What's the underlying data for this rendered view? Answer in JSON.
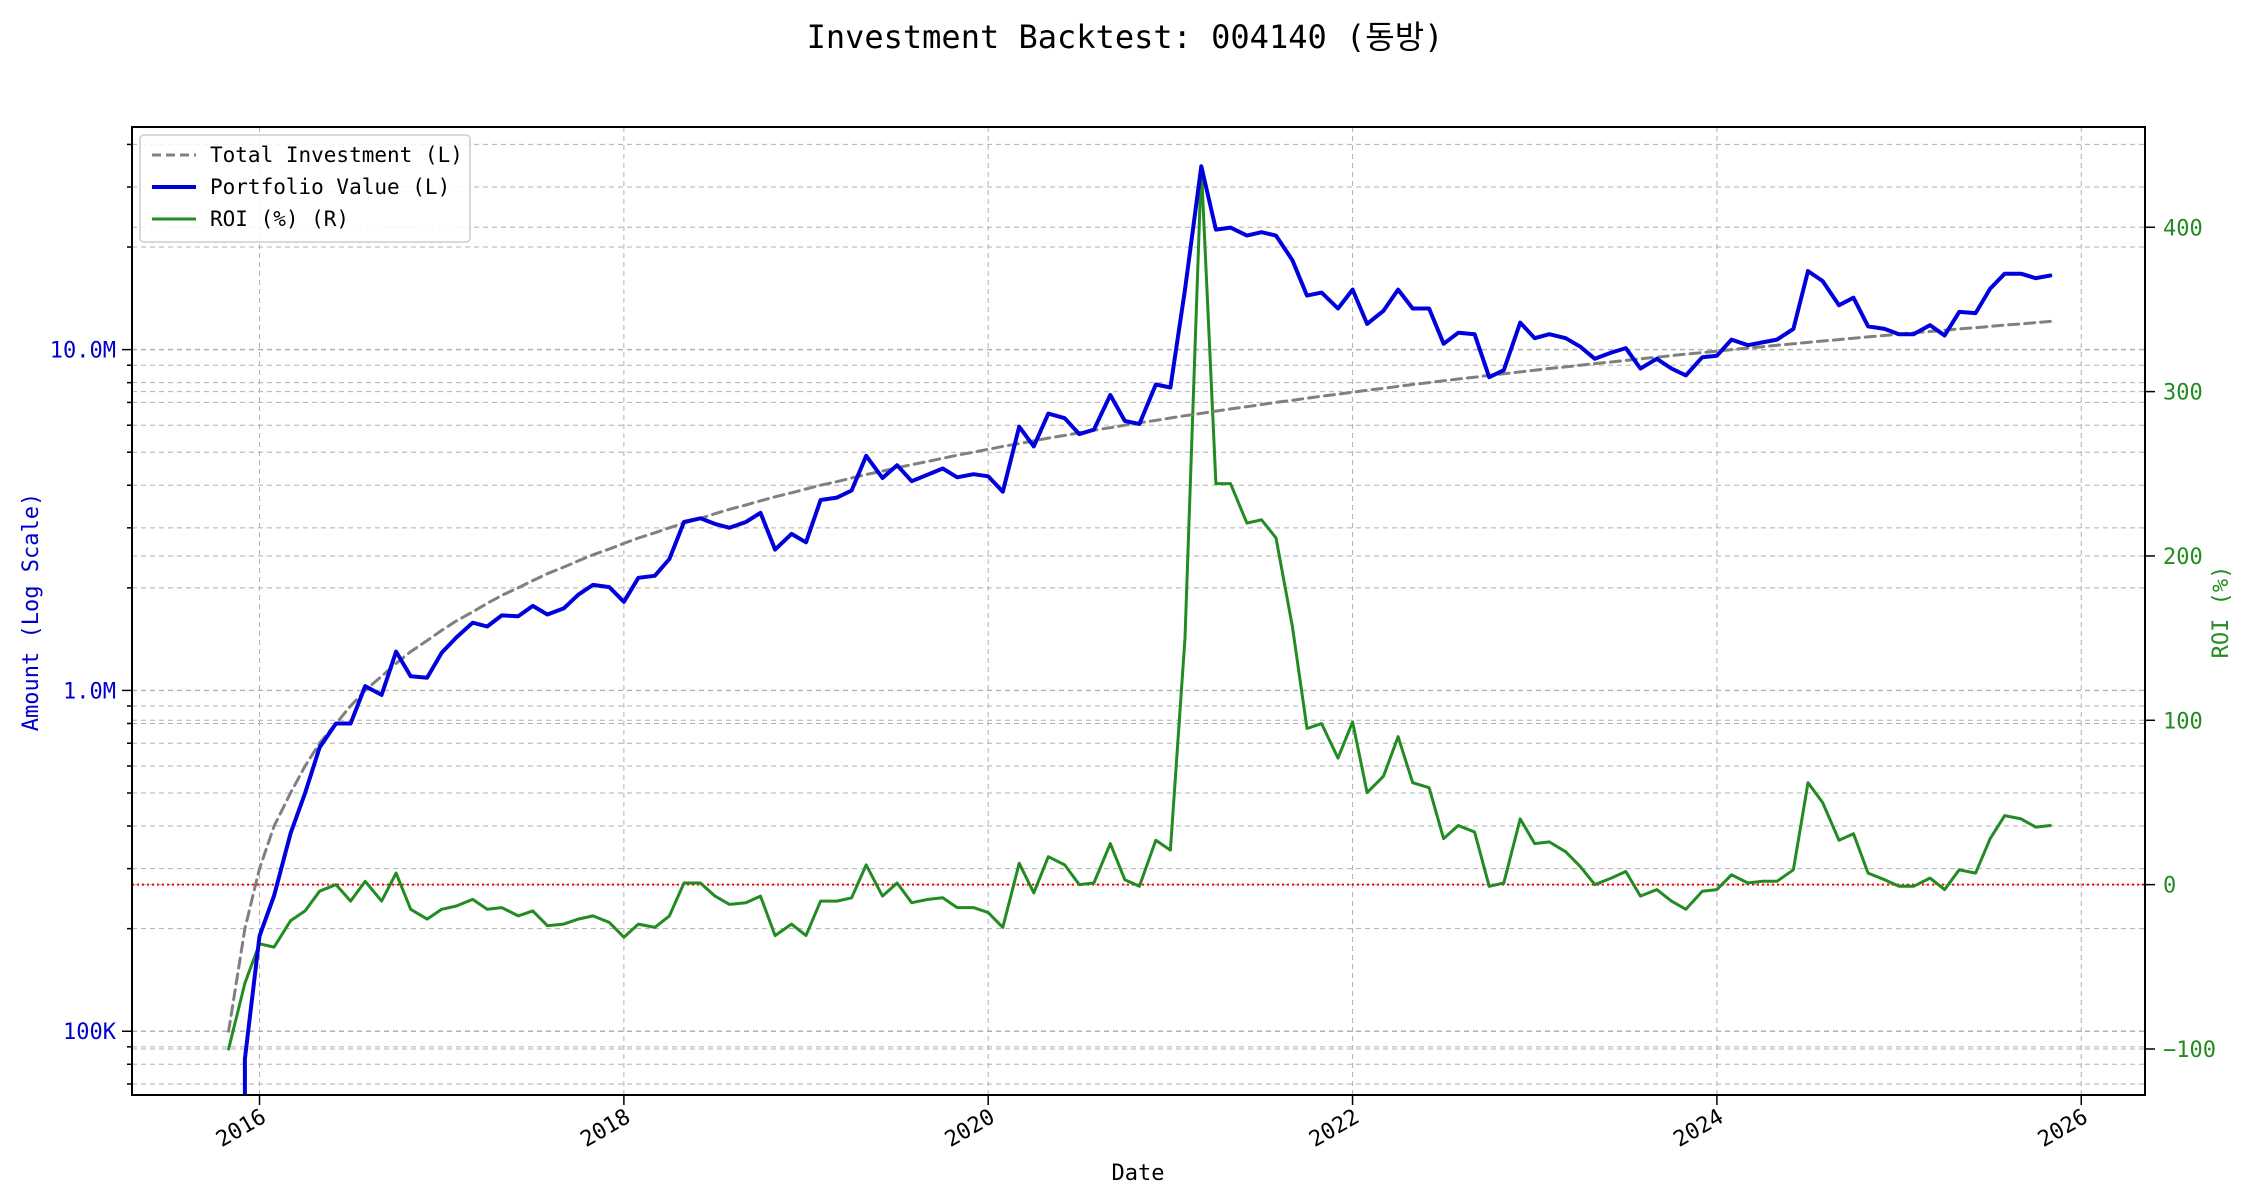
{
  "chart_data": {
    "type": "line",
    "title": "Investment Backtest: 004140 (동방)",
    "xlabel": "Date",
    "ylabel_left": "Amount (Log Scale)",
    "ylabel_right": "ROI (%)",
    "x_ticks": [
      "2016",
      "2018",
      "2020",
      "2022",
      "2024",
      "2026"
    ],
    "y_left_scale": "log",
    "y_left_ticks": [
      {
        "value": 100000,
        "label": "100K"
      },
      {
        "value": 1000000,
        "label": "1.0M"
      },
      {
        "value": 10000000,
        "label": "10.0M"
      }
    ],
    "y_left_range": [
      65000,
      45000000
    ],
    "y_right_ticks": [
      {
        "value": -100,
        "label": "−100"
      },
      {
        "value": 0,
        "label": "0"
      },
      {
        "value": 100,
        "label": "100"
      },
      {
        "value": 200,
        "label": "200"
      },
      {
        "value": 300,
        "label": "300"
      },
      {
        "value": 400,
        "label": "400"
      }
    ],
    "y_right_range": [
      -128,
      461
    ],
    "x_range": [
      2015.3,
      2026.35
    ],
    "grid": true,
    "legend_position": "top-left",
    "reference_line": {
      "axis": "right",
      "value": 0,
      "color": "#ff0000",
      "style": "dotted"
    },
    "colors": {
      "investment": "#808080",
      "portfolio": "#0000dd",
      "roi": "#228B22"
    },
    "series": [
      {
        "name": "Total Investment (L)",
        "axis": "left",
        "style": "dashed",
        "x": [
          2015.83,
          2015.92,
          2016.0,
          2016.08,
          2016.17,
          2016.25,
          2016.33,
          2016.42,
          2016.5,
          2016.58,
          2016.67,
          2016.75,
          2016.83,
          2016.92,
          2017.0,
          2017.08,
          2017.17,
          2017.25,
          2017.33,
          2017.42,
          2017.5,
          2017.58,
          2017.67,
          2017.75,
          2017.83,
          2017.92,
          2018.0,
          2018.08,
          2018.17,
          2018.25,
          2018.33,
          2018.42,
          2018.5,
          2018.58,
          2018.67,
          2018.75,
          2018.83,
          2018.92,
          2019.0,
          2019.08,
          2019.17,
          2019.25,
          2019.33,
          2019.42,
          2019.5,
          2019.58,
          2019.67,
          2019.75,
          2019.83,
          2019.92,
          2020.0,
          2020.08,
          2020.17,
          2020.25,
          2020.33,
          2020.42,
          2020.5,
          2020.58,
          2020.67,
          2020.75,
          2020.83,
          2020.92,
          2021.0,
          2021.08,
          2021.17,
          2021.25,
          2021.33,
          2021.42,
          2021.5,
          2021.58,
          2021.67,
          2021.75,
          2021.83,
          2021.92,
          2022.0,
          2022.08,
          2022.17,
          2022.25,
          2022.33,
          2022.42,
          2022.5,
          2022.58,
          2022.67,
          2022.75,
          2022.83,
          2022.92,
          2023.0,
          2023.08,
          2023.17,
          2023.25,
          2023.33,
          2023.42,
          2023.5,
          2023.58,
          2023.67,
          2023.75,
          2023.83,
          2023.92,
          2024.0,
          2024.08,
          2024.17,
          2024.25,
          2024.33,
          2024.42,
          2024.5,
          2024.58,
          2024.67,
          2024.75,
          2024.83,
          2024.92,
          2025.0,
          2025.08,
          2025.17,
          2025.25,
          2025.33,
          2025.42,
          2025.5,
          2025.58,
          2025.67,
          2025.75,
          2025.83
        ],
        "values": [
          100000,
          200000,
          300000,
          400000,
          500000,
          600000,
          700000,
          800000,
          900000,
          1000000,
          1100000,
          1200000,
          1300000,
          1400000,
          1500000,
          1600000,
          1700000,
          1800000,
          1900000,
          2000000,
          2100000,
          2200000,
          2300000,
          2400000,
          2500000,
          2600000,
          2700000,
          2800000,
          2900000,
          3000000,
          3100000,
          3200000,
          3300000,
          3400000,
          3500000,
          3600000,
          3700000,
          3800000,
          3900000,
          4000000,
          4100000,
          4200000,
          4300000,
          4400000,
          4500000,
          4600000,
          4700000,
          4800000,
          4900000,
          5000000,
          5100000,
          5200000,
          5300000,
          5400000,
          5500000,
          5600000,
          5700000,
          5800000,
          5900000,
          6000000,
          6100000,
          6200000,
          6300000,
          6400000,
          6500000,
          6600000,
          6700000,
          6800000,
          6900000,
          7000000,
          7100000,
          7200000,
          7300000,
          7400000,
          7500000,
          7600000,
          7700000,
          7800000,
          7900000,
          8000000,
          8100000,
          8200000,
          8300000,
          8400000,
          8500000,
          8600000,
          8700000,
          8800000,
          8900000,
          9000000,
          9100000,
          9200000,
          9300000,
          9400000,
          9500000,
          9600000,
          9700000,
          9800000,
          9900000,
          10000000,
          10100000,
          10200000,
          10300000,
          10400000,
          10500000,
          10600000,
          10700000,
          10800000,
          10900000,
          11000000,
          11100000,
          11200000,
          11300000,
          11400000,
          11500000,
          11600000,
          11700000,
          11800000,
          11900000,
          12000000,
          12100000
        ]
      },
      {
        "name": "Portfolio Value (L)",
        "axis": "left",
        "style": "solid",
        "x": [
          2015.92,
          2015.92,
          2016.0,
          2016.08,
          2016.17,
          2016.25,
          2016.33,
          2016.42,
          2016.5,
          2016.58,
          2016.67,
          2016.75,
          2016.83,
          2016.92,
          2017.0,
          2017.08,
          2017.17,
          2017.25,
          2017.33,
          2017.42,
          2017.5,
          2017.58,
          2017.67,
          2017.75,
          2017.83,
          2017.92,
          2018.0,
          2018.08,
          2018.17,
          2018.25,
          2018.33,
          2018.42,
          2018.5,
          2018.58,
          2018.67,
          2018.75,
          2018.83,
          2018.92,
          2019.0,
          2019.08,
          2019.17,
          2019.25,
          2019.33,
          2019.42,
          2019.5,
          2019.58,
          2019.67,
          2019.75,
          2019.83,
          2019.92,
          2020.0,
          2020.08,
          2020.17,
          2020.25,
          2020.33,
          2020.42,
          2020.5,
          2020.58,
          2020.67,
          2020.75,
          2020.83,
          2020.92,
          2021.0,
          2021.08,
          2021.17,
          2021.25,
          2021.33,
          2021.42,
          2021.5,
          2021.58,
          2021.67,
          2021.75,
          2021.83,
          2021.92,
          2022.0,
          2022.08,
          2022.17,
          2022.25,
          2022.33,
          2022.42,
          2022.5,
          2022.58,
          2022.67,
          2022.75,
          2022.83,
          2022.92,
          2023.0,
          2023.08,
          2023.17,
          2023.25,
          2023.33,
          2023.42,
          2023.5,
          2023.58,
          2023.67,
          2023.75,
          2023.83,
          2023.92,
          2024.0,
          2024.08,
          2024.17,
          2024.25,
          2024.33,
          2024.42,
          2024.5,
          2024.58,
          2024.67,
          2024.75,
          2024.83,
          2024.92,
          2025.0,
          2025.08,
          2025.17,
          2025.25,
          2025.33,
          2025.42,
          2025.5,
          2025.58,
          2025.67,
          2025.75,
          2025.83
        ],
        "values": [
          60000,
          83000,
          190000,
          250000,
          380000,
          500000,
          680000,
          800000,
          800000,
          1030000,
          970000,
          1300000,
          1100000,
          1090000,
          1290000,
          1430000,
          1580000,
          1540000,
          1660000,
          1650000,
          1770000,
          1670000,
          1740000,
          1910000,
          2040000,
          2010000,
          1820000,
          2140000,
          2170000,
          2430000,
          3120000,
          3200000,
          3080000,
          3000000,
          3120000,
          3320000,
          2590000,
          2880000,
          2720000,
          3620000,
          3680000,
          3860000,
          4880000,
          4200000,
          4580000,
          4110000,
          4300000,
          4480000,
          4220000,
          4310000,
          4250000,
          3830000,
          5940000,
          5200000,
          6490000,
          6290000,
          5650000,
          5820000,
          7360000,
          6180000,
          6050000,
          7900000,
          7740000,
          15000000,
          34500000,
          22500000,
          22800000,
          21600000,
          22100000,
          21600000,
          18300000,
          14400000,
          14700000,
          13200000,
          15000000,
          11900000,
          13000000,
          15000000,
          13200000,
          13200000,
          10400000,
          11200000,
          11100000,
          8300000,
          8700000,
          12000000,
          10800000,
          11100000,
          10800000,
          10200000,
          9400000,
          9800000,
          10100000,
          8800000,
          9400000,
          8800000,
          8400000,
          9500000,
          9600000,
          10700000,
          10300000,
          10500000,
          10700000,
          11500000,
          17000000,
          15900000,
          13500000,
          14200000,
          11700000,
          11500000,
          11100000,
          11100000,
          11800000,
          11000000,
          12900000,
          12800000,
          15100000,
          16700000,
          16700000,
          16200000,
          16500000
        ]
      },
      {
        "name": "ROI (%) (R)",
        "axis": "right",
        "style": "solid",
        "x": [
          2015.83,
          2015.92,
          2016.0,
          2016.08,
          2016.17,
          2016.25,
          2016.33,
          2016.42,
          2016.5,
          2016.58,
          2016.67,
          2016.75,
          2016.83,
          2016.92,
          2017.0,
          2017.08,
          2017.17,
          2017.25,
          2017.33,
          2017.42,
          2017.5,
          2017.58,
          2017.67,
          2017.75,
          2017.83,
          2017.92,
          2018.0,
          2018.08,
          2018.17,
          2018.25,
          2018.33,
          2018.42,
          2018.5,
          2018.58,
          2018.67,
          2018.75,
          2018.83,
          2018.92,
          2019.0,
          2019.08,
          2019.17,
          2019.25,
          2019.33,
          2019.42,
          2019.5,
          2019.58,
          2019.67,
          2019.75,
          2019.83,
          2019.92,
          2020.0,
          2020.08,
          2020.17,
          2020.25,
          2020.33,
          2020.42,
          2020.5,
          2020.58,
          2020.67,
          2020.75,
          2020.83,
          2020.92,
          2021.0,
          2021.08,
          2021.17,
          2021.25,
          2021.33,
          2021.42,
          2021.5,
          2021.58,
          2021.67,
          2021.75,
          2021.83,
          2021.92,
          2022.0,
          2022.08,
          2022.17,
          2022.25,
          2022.33,
          2022.42,
          2022.5,
          2022.58,
          2022.67,
          2022.75,
          2022.83,
          2022.92,
          2023.0,
          2023.08,
          2023.17,
          2023.25,
          2023.33,
          2023.42,
          2023.5,
          2023.58,
          2023.67,
          2023.75,
          2023.83,
          2023.92,
          2024.0,
          2024.08,
          2024.17,
          2024.25,
          2024.33,
          2024.42,
          2024.5,
          2024.58,
          2024.67,
          2024.75,
          2024.83,
          2024.92,
          2025.0,
          2025.08,
          2025.17,
          2025.25,
          2025.33,
          2025.42,
          2025.5,
          2025.58,
          2025.67,
          2025.75,
          2025.83
        ],
        "values": [
          -100,
          -60,
          -36,
          -38,
          -22,
          -16,
          -4,
          0,
          -10,
          2,
          -10,
          7,
          -15,
          -21,
          -15,
          -13,
          -9,
          -15,
          -14,
          -19,
          -16,
          -25,
          -24,
          -21,
          -19,
          -23,
          -32,
          -24,
          -26,
          -19,
          1,
          1,
          -7,
          -12,
          -11,
          -7,
          -31,
          -24,
          -31,
          -10,
          -10,
          -8,
          12,
          -7,
          1,
          -11,
          -9,
          -8,
          -14,
          -14,
          -17,
          -26,
          13,
          -5,
          17,
          12,
          0,
          1,
          25,
          3,
          -1,
          27,
          21,
          150,
          437,
          244,
          244,
          220,
          222,
          211,
          157,
          95,
          98,
          77,
          99,
          56,
          66,
          90,
          62,
          59,
          28,
          36,
          32,
          -1,
          1,
          40,
          25,
          26,
          20,
          11,
          0,
          4,
          8,
          -7,
          -3,
          -10,
          -15,
          -4,
          -3,
          6,
          1,
          2,
          2,
          9,
          62,
          50,
          27,
          31,
          7,
          3,
          -1,
          -1,
          4,
          -3,
          9,
          7,
          28,
          42,
          40,
          35,
          36
        ]
      }
    ]
  }
}
